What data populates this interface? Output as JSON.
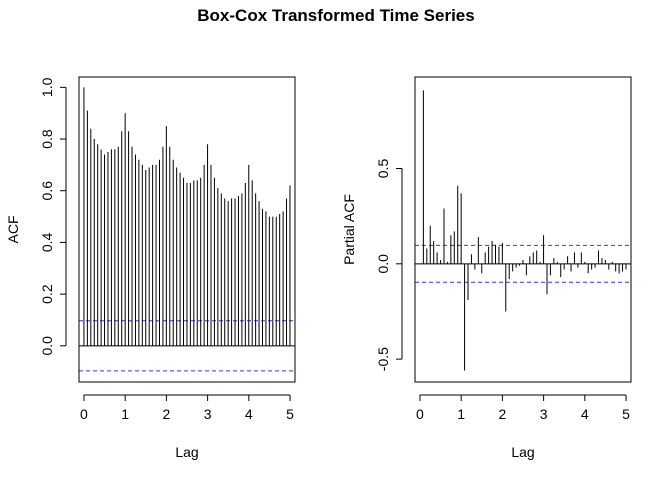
{
  "figure_title": "Box-Cox Transformed Time Series",
  "ci_color": "#3333ff",
  "chart_data": [
    {
      "type": "bar",
      "kind": "ACF",
      "xlabel": "Lag",
      "ylabel": "ACF",
      "xlim": [
        -0.12,
        5.12
      ],
      "ylim": [
        -0.14,
        1.04
      ],
      "xticks": [
        0,
        1,
        2,
        3,
        4,
        5
      ],
      "yticks": [
        0.0,
        0.2,
        0.4,
        0.6,
        0.8,
        1.0
      ],
      "ytick_labels": [
        "0.0",
        "0.2",
        "0.4",
        "0.6",
        "0.8",
        "1.0"
      ],
      "confidence_bound": 0.097,
      "lag_step": 0.0833,
      "lags_start": 0,
      "values": [
        1.0,
        0.91,
        0.84,
        0.8,
        0.78,
        0.76,
        0.74,
        0.75,
        0.76,
        0.76,
        0.77,
        0.83,
        0.9,
        0.83,
        0.77,
        0.74,
        0.72,
        0.7,
        0.68,
        0.69,
        0.7,
        0.7,
        0.72,
        0.77,
        0.85,
        0.77,
        0.72,
        0.69,
        0.67,
        0.65,
        0.63,
        0.63,
        0.64,
        0.64,
        0.65,
        0.7,
        0.78,
        0.7,
        0.65,
        0.61,
        0.59,
        0.57,
        0.56,
        0.57,
        0.57,
        0.58,
        0.59,
        0.63,
        0.7,
        0.64,
        0.59,
        0.56,
        0.53,
        0.52,
        0.5,
        0.5,
        0.5,
        0.51,
        0.52,
        0.57,
        0.62
      ]
    },
    {
      "type": "bar",
      "kind": "PACF",
      "xlabel": "Lag",
      "ylabel": "Partial ACF",
      "xlim": [
        -0.12,
        5.12
      ],
      "ylim": [
        -0.62,
        0.98
      ],
      "xticks": [
        0,
        1,
        2,
        3,
        4,
        5
      ],
      "yticks": [
        -0.5,
        0.0,
        0.5
      ],
      "ytick_labels": [
        "-0.5",
        "0.0",
        "0.5"
      ],
      "confidence_bound": 0.097,
      "lag_step": 0.0833,
      "lags_start": 1,
      "values": [
        0.91,
        0.08,
        0.2,
        0.12,
        0.06,
        0.02,
        0.29,
        0.01,
        0.15,
        0.17,
        0.41,
        0.37,
        -0.56,
        -0.19,
        0.05,
        -0.03,
        0.14,
        -0.05,
        0.06,
        0.09,
        0.12,
        0.1,
        0.09,
        0.11,
        -0.25,
        -0.08,
        -0.04,
        -0.02,
        -0.01,
        0.02,
        -0.06,
        0.04,
        0.06,
        0.07,
        0.01,
        0.15,
        -0.16,
        -0.06,
        0.03,
        0.01,
        -0.07,
        -0.03,
        0.04,
        -0.04,
        0.06,
        -0.02,
        0.06,
        0.01,
        -0.05,
        -0.03,
        -0.02,
        0.07,
        0.03,
        0.02,
        -0.03,
        0.01,
        -0.04,
        -0.05,
        -0.04,
        -0.03
      ]
    }
  ]
}
